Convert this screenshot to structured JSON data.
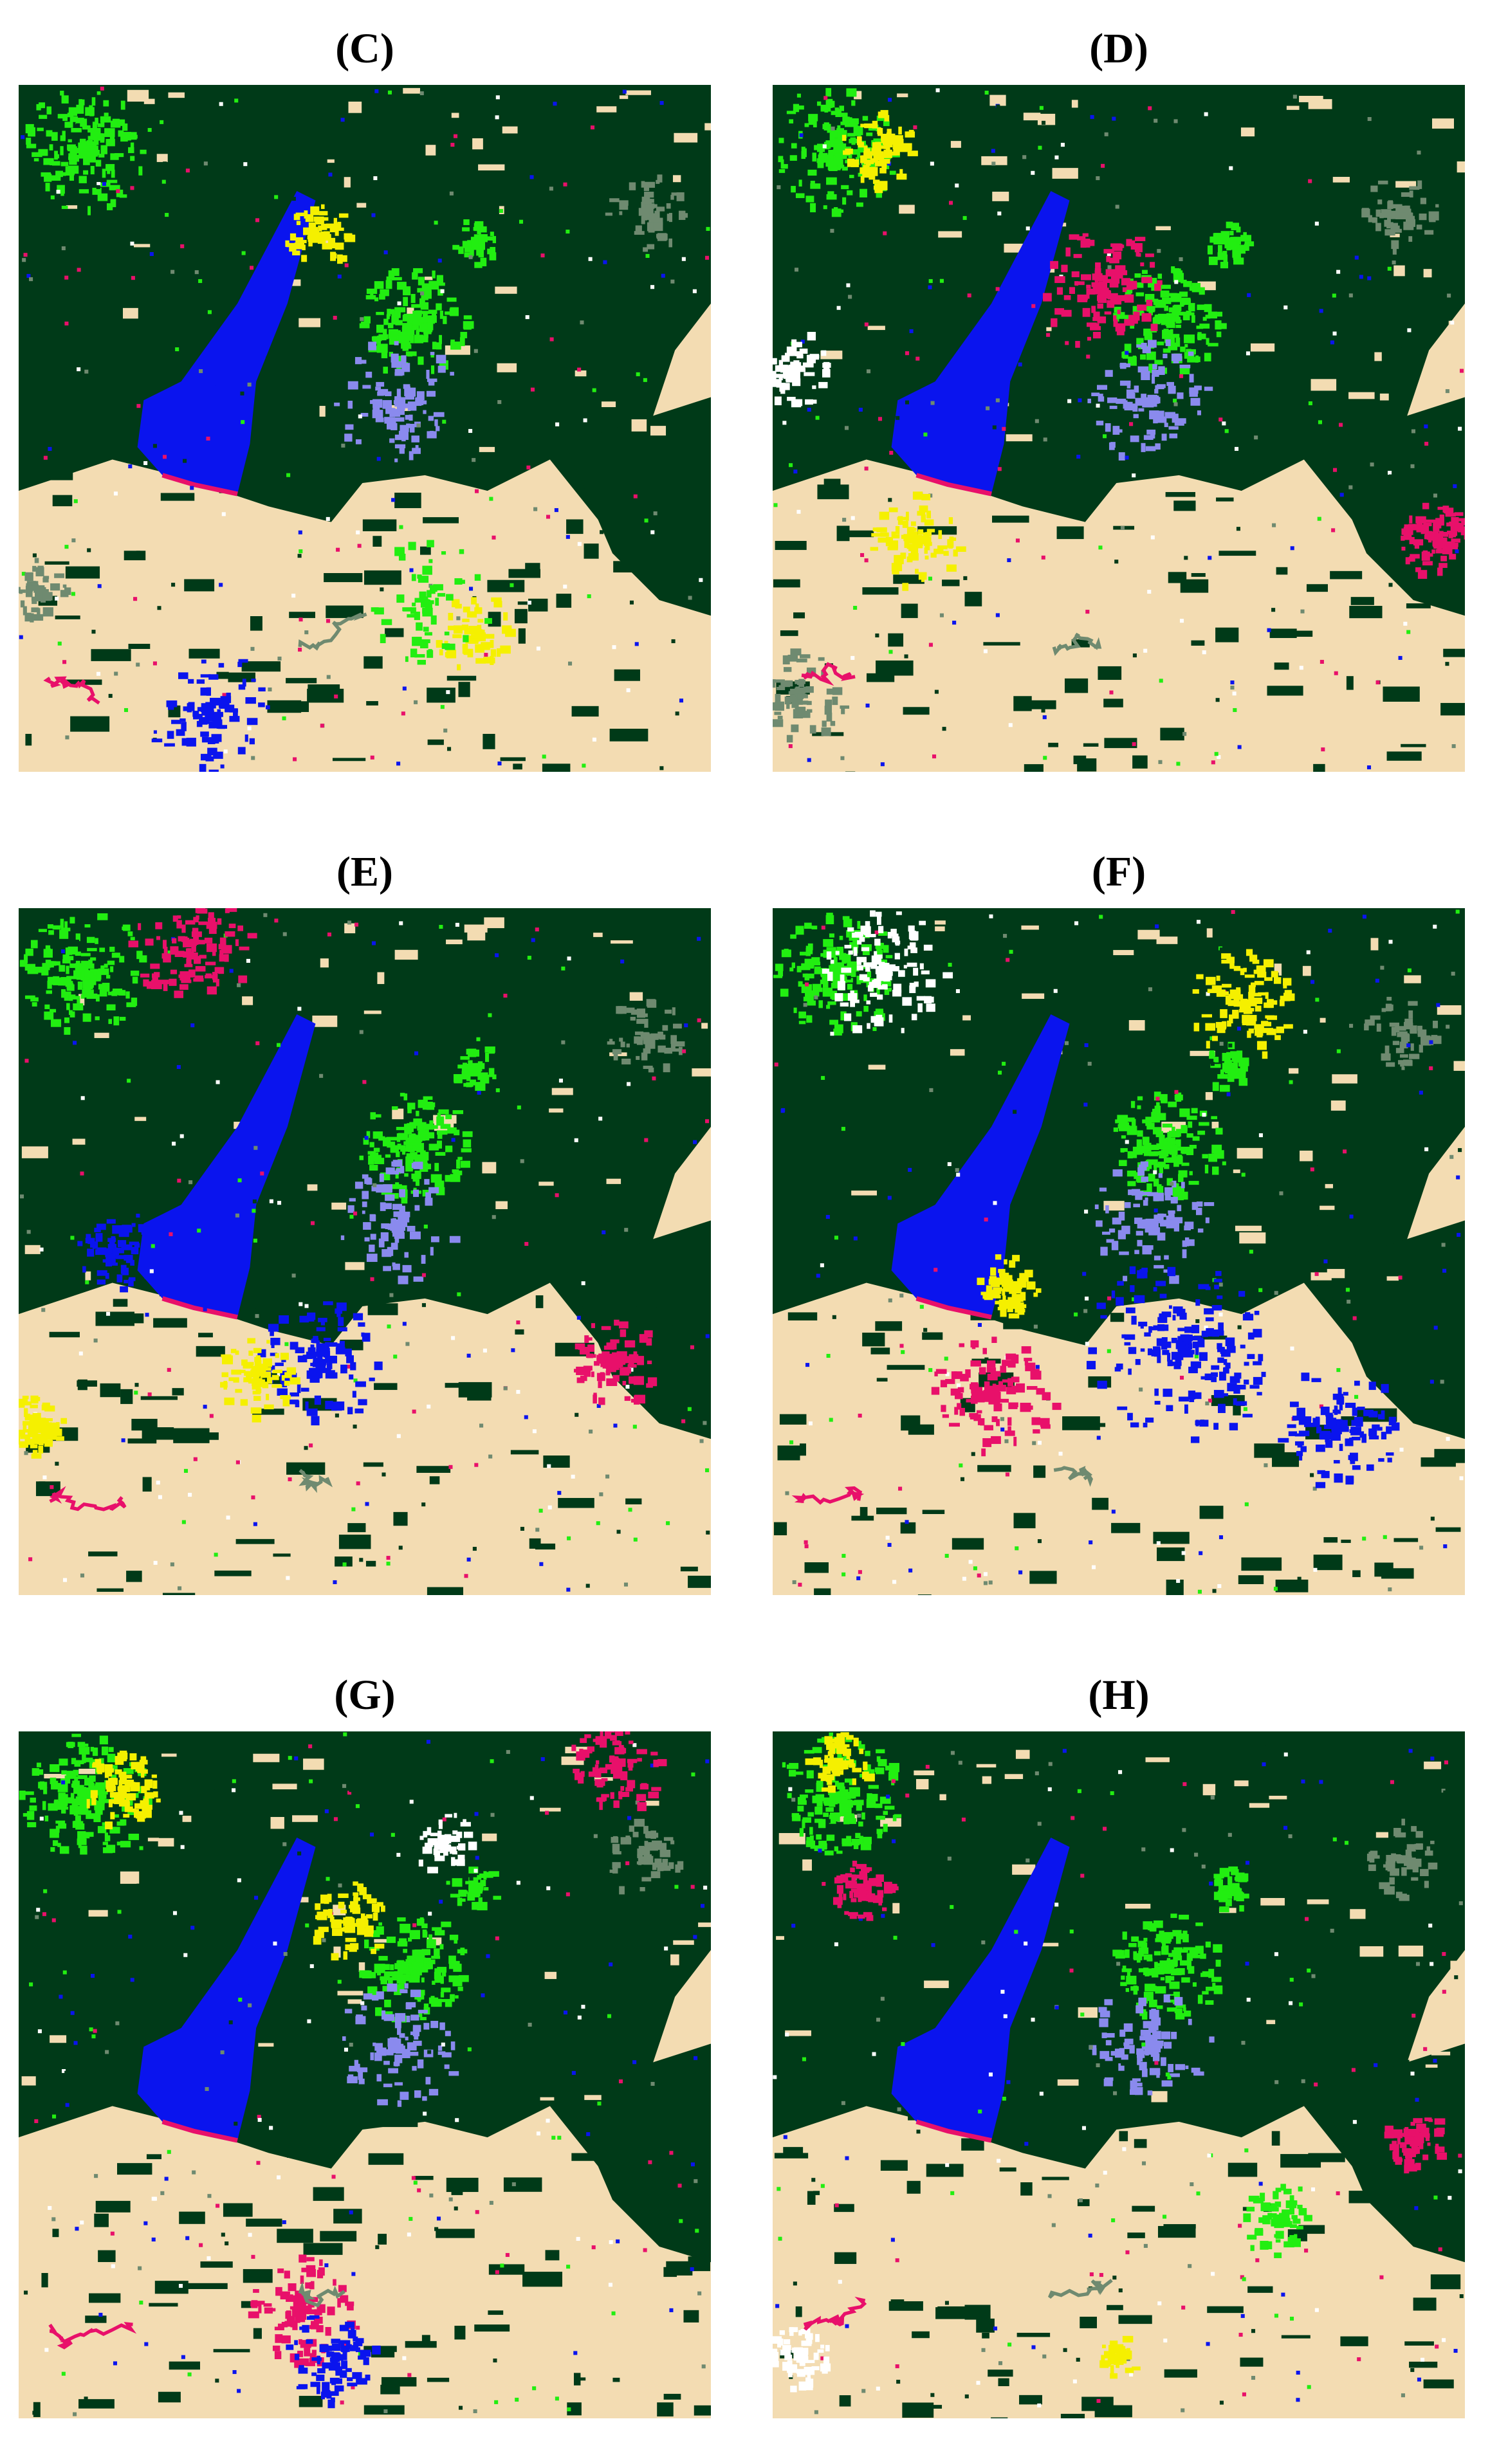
{
  "panels": [
    {
      "label": "(C)"
    },
    {
      "label": "(D)"
    },
    {
      "label": "(E)"
    },
    {
      "label": "(F)"
    },
    {
      "label": "(G)"
    },
    {
      "label": "(H)"
    }
  ]
}
